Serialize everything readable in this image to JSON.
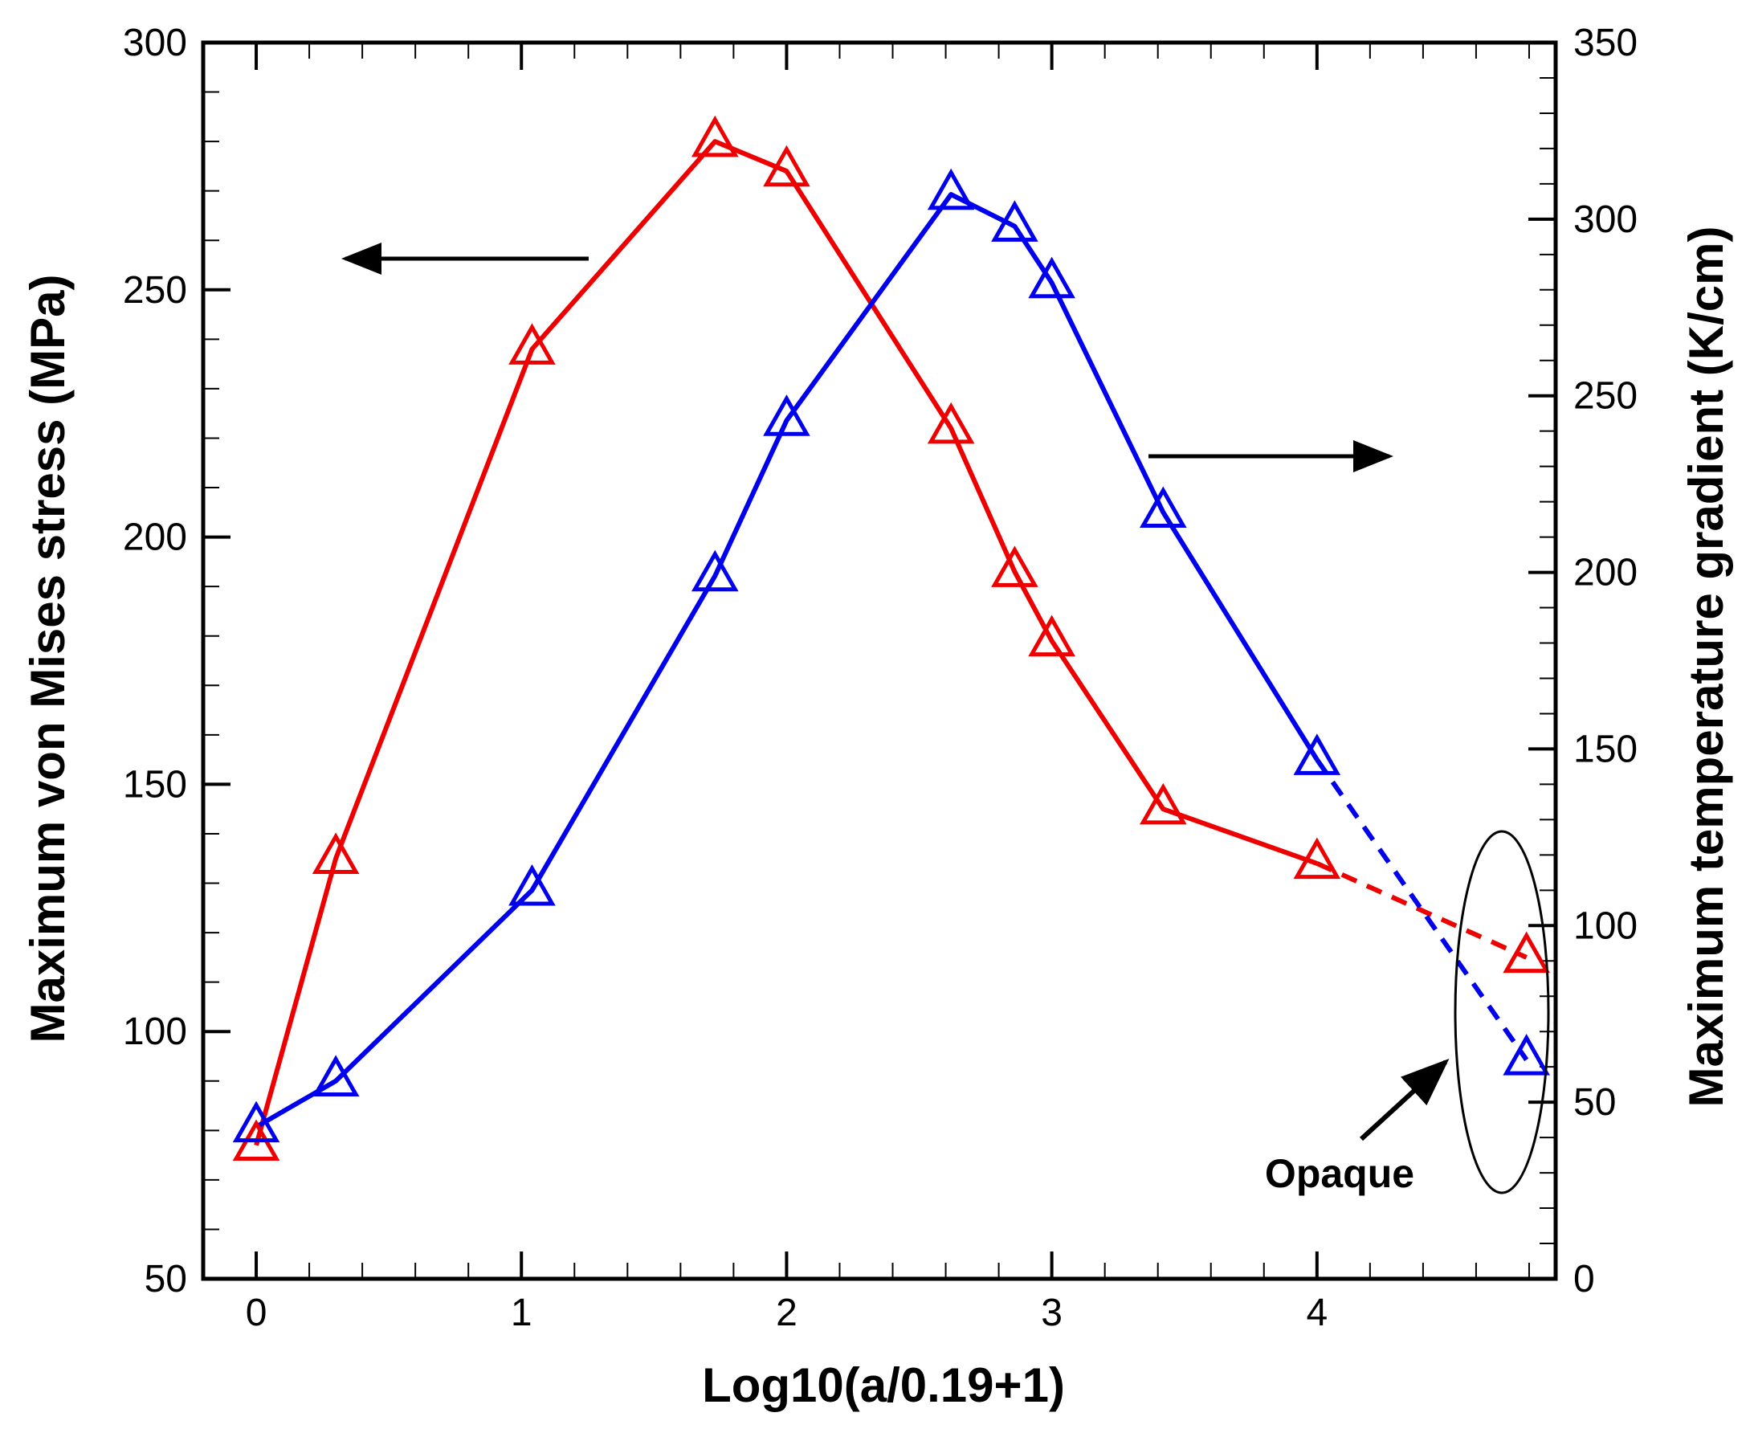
{
  "chart_data": {
    "type": "line",
    "xlabel": "Log10(a/0.19+1)",
    "ylabel_left": "Maximum von Mises stress (MPa)",
    "ylabel_right": "Maximum temperature gradient (K/cm)",
    "xlim": [
      -0.2,
      4.9
    ],
    "xticks": [
      0,
      1,
      2,
      3,
      4
    ],
    "xtick_labels": [
      "0",
      "1",
      "2",
      "3",
      "4"
    ],
    "ylim_left": [
      50,
      300
    ],
    "yticks_left": [
      50,
      100,
      150,
      200,
      250,
      300
    ],
    "ytick_labels_left": [
      "50",
      "100",
      "150",
      "200",
      "250",
      "300"
    ],
    "ylim_right": [
      0,
      350
    ],
    "yticks_right": [
      0,
      50,
      100,
      150,
      200,
      250,
      300,
      350
    ],
    "ytick_labels_right": [
      "0",
      "50",
      "100",
      "150",
      "200",
      "250",
      "300",
      "350"
    ],
    "series": [
      {
        "name": "Maximum von Mises stress",
        "axis": "left",
        "color": "#ee0000",
        "marker": "triangle-open",
        "x": [
          0,
          0.3,
          1.04,
          1.73,
          2.0,
          2.62,
          2.86,
          3.0,
          3.42,
          4.0,
          4.79
        ],
        "y": [
          77,
          135,
          238,
          280,
          274,
          222,
          193,
          179,
          145,
          134,
          115
        ],
        "dashed_from_index": 9
      },
      {
        "name": "Maximum temperature gradient",
        "axis": "right",
        "color": "#0000ee",
        "marker": "triangle-open",
        "x": [
          0,
          0.3,
          1.04,
          1.73,
          2.0,
          2.62,
          2.86,
          3.0,
          3.42,
          4.0,
          4.79
        ],
        "y": [
          43,
          56,
          110,
          199,
          243,
          307,
          298,
          282,
          217,
          147,
          62
        ],
        "dashed_from_index": 9
      }
    ],
    "annotations": {
      "opaque_label": "Opaque"
    }
  },
  "colors": {
    "stress_series": "#ee0000",
    "gradient_series": "#0000ee",
    "axes": "#000000"
  }
}
